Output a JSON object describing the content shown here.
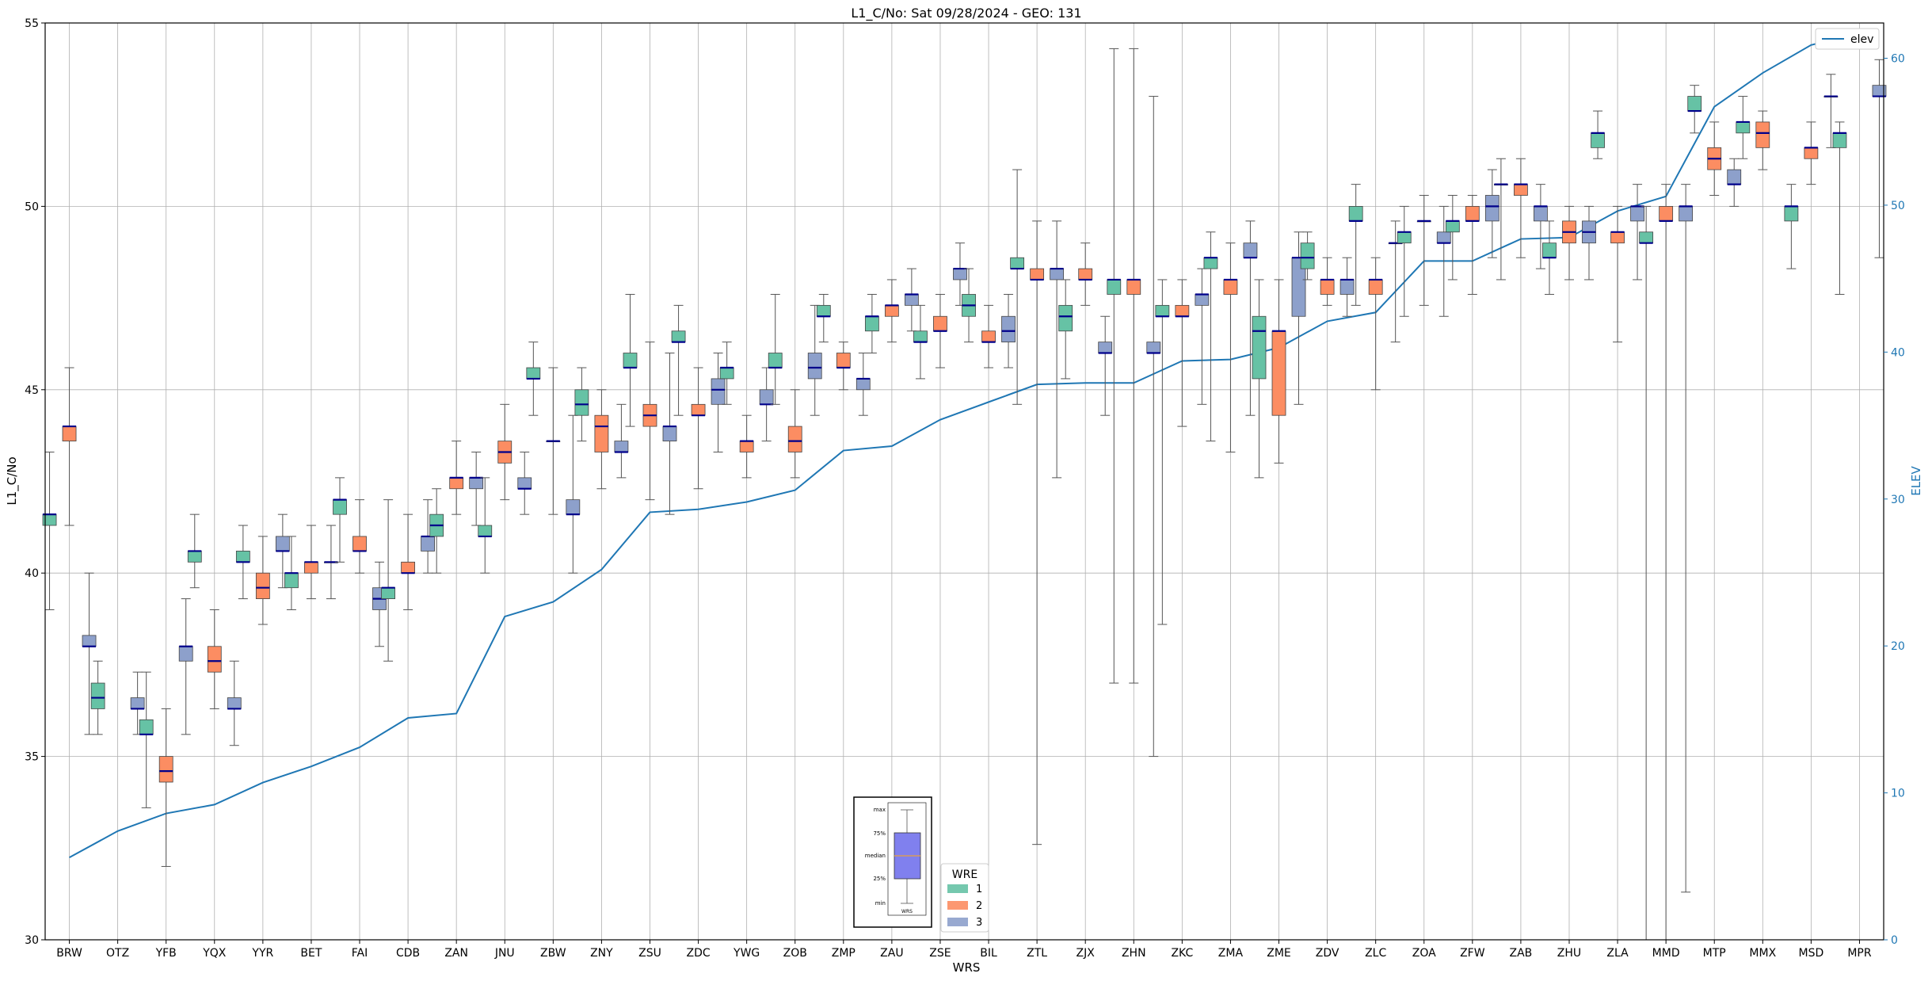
{
  "chart_data": {
    "type": "box",
    "title": "L1_C/No: Sat 09/28/2024 - GEO: 131",
    "xlabel": "WRS",
    "ylabel": "L1_C/No",
    "y2label": "ELEV",
    "ylim": [
      30,
      55
    ],
    "y2lim": [
      0,
      62.4
    ],
    "yticks": [
      30,
      35,
      40,
      45,
      50,
      55
    ],
    "y2ticks": [
      0,
      10,
      20,
      30,
      40,
      50,
      60
    ],
    "grid": true,
    "colors": {
      "1": "#66c2a5",
      "2": "#fc8d62",
      "3": "#8da0cb",
      "median": "#00008b",
      "elev": "#1f77b4",
      "axis2": "#1f77b4",
      "grid": "#b0b0b0"
    },
    "categories": [
      "BRW",
      "OTZ",
      "YFB",
      "YQX",
      "YYR",
      "BET",
      "FAI",
      "CDB",
      "ZAN",
      "JNU",
      "ZBW",
      "ZNY",
      "ZSU",
      "ZDC",
      "YWG",
      "ZOB",
      "ZMP",
      "ZAU",
      "ZSE",
      "BIL",
      "ZTL",
      "ZJX",
      "ZHN",
      "ZKC",
      "ZMA",
      "ZME",
      "ZDV",
      "ZLC",
      "ZOA",
      "ZFW",
      "ZAB",
      "ZHU",
      "ZLA",
      "MMD",
      "MTP",
      "MMX",
      "MSD",
      "MPR"
    ],
    "elev": [
      5.6,
      7.4,
      8.6,
      9.2,
      10.7,
      11.8,
      13.1,
      15.1,
      15.4,
      22.0,
      23.0,
      25.2,
      29.1,
      29.3,
      29.8,
      30.6,
      33.3,
      33.6,
      35.4,
      36.6,
      37.8,
      37.9,
      37.9,
      39.4,
      39.5,
      40.3,
      42.1,
      42.7,
      46.2,
      46.2,
      47.7,
      47.8,
      49.6,
      50.6,
      56.7,
      59.0,
      60.9,
      61.7
    ],
    "legend": {
      "title": "WRE",
      "entries": [
        "1",
        "2",
        "3"
      ],
      "line_label": "elev"
    },
    "inset": {
      "labels": [
        "max",
        "75%",
        "median",
        "25%",
        "min"
      ],
      "xlabel": "WRS"
    },
    "boxes": [
      {
        "cat": "BRW",
        "wre": "1",
        "min": 39.0,
        "q1": 41.3,
        "med": 41.6,
        "q3": 41.6,
        "max": 43.3
      },
      {
        "cat": "BRW",
        "wre": "2",
        "min": 41.3,
        "q1": 43.6,
        "med": 44.0,
        "q3": 44.0,
        "max": 45.6
      },
      {
        "cat": "BRW",
        "wre": "3",
        "min": 35.6,
        "q1": 38.0,
        "med": 38.0,
        "q3": 38.3,
        "max": 40.0
      },
      {
        "cat": "OTZ",
        "wre": "1",
        "min": 35.6,
        "q1": 36.3,
        "med": 36.6,
        "q3": 37.0,
        "max": 37.6
      },
      {
        "cat": "OTZ",
        "wre": "3",
        "min": 35.6,
        "q1": 36.3,
        "med": 36.3,
        "q3": 36.6,
        "max": 37.3
      },
      {
        "cat": "YFB",
        "wre": "1",
        "min": 33.6,
        "q1": 35.6,
        "med": 35.6,
        "q3": 36.0,
        "max": 37.3
      },
      {
        "cat": "YFB",
        "wre": "2",
        "min": 32.0,
        "q1": 34.3,
        "med": 34.6,
        "q3": 35.0,
        "max": 36.3
      },
      {
        "cat": "YFB",
        "wre": "3",
        "min": 35.6,
        "q1": 37.6,
        "med": 38.0,
        "q3": 38.0,
        "max": 39.3
      },
      {
        "cat": "YQX",
        "wre": "1",
        "min": 39.6,
        "q1": 40.3,
        "med": 40.6,
        "q3": 40.6,
        "max": 41.6
      },
      {
        "cat": "YQX",
        "wre": "2",
        "min": 36.3,
        "q1": 37.3,
        "med": 37.6,
        "q3": 38.0,
        "max": 39.0
      },
      {
        "cat": "YQX",
        "wre": "3",
        "min": 35.3,
        "q1": 36.3,
        "med": 36.3,
        "q3": 36.6,
        "max": 37.6
      },
      {
        "cat": "YYR",
        "wre": "1",
        "min": 39.3,
        "q1": 40.3,
        "med": 40.3,
        "q3": 40.6,
        "max": 41.3
      },
      {
        "cat": "YYR",
        "wre": "2",
        "min": 38.6,
        "q1": 39.3,
        "med": 39.6,
        "q3": 40.0,
        "max": 41.0
      },
      {
        "cat": "YYR",
        "wre": "3",
        "min": 39.6,
        "q1": 40.6,
        "med": 40.6,
        "q3": 41.0,
        "max": 41.6
      },
      {
        "cat": "BET",
        "wre": "1",
        "min": 39.0,
        "q1": 39.6,
        "med": 40.0,
        "q3": 40.0,
        "max": 41.0
      },
      {
        "cat": "BET",
        "wre": "2",
        "min": 39.3,
        "q1": 40.0,
        "med": 40.3,
        "q3": 40.3,
        "max": 41.3
      },
      {
        "cat": "BET",
        "wre": "3",
        "min": 39.3,
        "q1": 40.3,
        "med": 40.3,
        "q3": 40.3,
        "max": 41.3
      },
      {
        "cat": "FAI",
        "wre": "1",
        "min": 40.3,
        "q1": 41.6,
        "med": 42.0,
        "q3": 42.0,
        "max": 42.6
      },
      {
        "cat": "FAI",
        "wre": "2",
        "min": 40.0,
        "q1": 40.6,
        "med": 40.6,
        "q3": 41.0,
        "max": 42.0
      },
      {
        "cat": "FAI",
        "wre": "3",
        "min": 38.0,
        "q1": 39.0,
        "med": 39.3,
        "q3": 39.6,
        "max": 40.3
      },
      {
        "cat": "CDB",
        "wre": "1",
        "min": 37.6,
        "q1": 39.3,
        "med": 39.6,
        "q3": 39.6,
        "max": 42.0
      },
      {
        "cat": "CDB",
        "wre": "2",
        "min": 39.0,
        "q1": 40.0,
        "med": 40.0,
        "q3": 40.3,
        "max": 41.6
      },
      {
        "cat": "CDB",
        "wre": "3",
        "min": 40.0,
        "q1": 40.6,
        "med": 41.0,
        "q3": 41.0,
        "max": 42.0
      },
      {
        "cat": "ZAN",
        "wre": "1",
        "min": 40.0,
        "q1": 41.0,
        "med": 41.3,
        "q3": 41.6,
        "max": 42.3
      },
      {
        "cat": "ZAN",
        "wre": "2",
        "min": 41.6,
        "q1": 42.3,
        "med": 42.6,
        "q3": 42.6,
        "max": 43.6
      },
      {
        "cat": "ZAN",
        "wre": "3",
        "min": 41.3,
        "q1": 42.3,
        "med": 42.6,
        "q3": 42.6,
        "max": 43.3
      },
      {
        "cat": "JNU",
        "wre": "1",
        "min": 40.0,
        "q1": 41.0,
        "med": 41.0,
        "q3": 41.3,
        "max": 42.6
      },
      {
        "cat": "JNU",
        "wre": "2",
        "min": 42.0,
        "q1": 43.0,
        "med": 43.3,
        "q3": 43.6,
        "max": 44.6
      },
      {
        "cat": "JNU",
        "wre": "3",
        "min": 41.6,
        "q1": 42.3,
        "med": 42.3,
        "q3": 42.6,
        "max": 43.3
      },
      {
        "cat": "ZBW",
        "wre": "1",
        "min": 44.3,
        "q1": 45.3,
        "med": 45.3,
        "q3": 45.6,
        "max": 46.3
      },
      {
        "cat": "ZBW",
        "wre": "2",
        "min": 41.6,
        "q1": 43.6,
        "med": 43.6,
        "q3": 43.6,
        "max": 45.6
      },
      {
        "cat": "ZBW",
        "wre": "3",
        "min": 40.0,
        "q1": 41.6,
        "med": 41.6,
        "q3": 42.0,
        "max": 44.3
      },
      {
        "cat": "ZNY",
        "wre": "1",
        "min": 43.6,
        "q1": 44.3,
        "med": 44.6,
        "q3": 45.0,
        "max": 45.6
      },
      {
        "cat": "ZNY",
        "wre": "2",
        "min": 42.3,
        "q1": 43.3,
        "med": 44.0,
        "q3": 44.3,
        "max": 45.0
      },
      {
        "cat": "ZNY",
        "wre": "3",
        "min": 42.6,
        "q1": 43.3,
        "med": 43.3,
        "q3": 43.6,
        "max": 44.6
      },
      {
        "cat": "ZSU",
        "wre": "1",
        "min": 44.0,
        "q1": 45.6,
        "med": 45.6,
        "q3": 46.0,
        "max": 47.6
      },
      {
        "cat": "ZSU",
        "wre": "2",
        "min": 42.0,
        "q1": 44.0,
        "med": 44.3,
        "q3": 44.6,
        "max": 46.3
      },
      {
        "cat": "ZSU",
        "wre": "3",
        "min": 41.6,
        "q1": 43.6,
        "med": 44.0,
        "q3": 44.0,
        "max": 46.0
      },
      {
        "cat": "ZDC",
        "wre": "1",
        "min": 44.3,
        "q1": 46.3,
        "med": 46.3,
        "q3": 46.6,
        "max": 47.3
      },
      {
        "cat": "ZDC",
        "wre": "2",
        "min": 42.3,
        "q1": 44.3,
        "med": 44.3,
        "q3": 44.6,
        "max": 45.6
      },
      {
        "cat": "ZDC",
        "wre": "3",
        "min": 43.3,
        "q1": 44.6,
        "med": 45.0,
        "q3": 45.3,
        "max": 46.0
      },
      {
        "cat": "YWG",
        "wre": "1",
        "min": 44.6,
        "q1": 45.3,
        "med": 45.6,
        "q3": 45.6,
        "max": 46.3
      },
      {
        "cat": "YWG",
        "wre": "2",
        "min": 42.6,
        "q1": 43.3,
        "med": 43.6,
        "q3": 43.6,
        "max": 44.3
      },
      {
        "cat": "YWG",
        "wre": "3",
        "min": 43.6,
        "q1": 44.6,
        "med": 44.6,
        "q3": 45.0,
        "max": 45.6
      },
      {
        "cat": "ZOB",
        "wre": "1",
        "min": 44.6,
        "q1": 45.6,
        "med": 45.6,
        "q3": 46.0,
        "max": 47.6
      },
      {
        "cat": "ZOB",
        "wre": "2",
        "min": 42.6,
        "q1": 43.3,
        "med": 43.6,
        "q3": 44.0,
        "max": 45.0
      },
      {
        "cat": "ZOB",
        "wre": "3",
        "min": 44.3,
        "q1": 45.3,
        "med": 45.6,
        "q3": 46.0,
        "max": 47.3
      },
      {
        "cat": "ZMP",
        "wre": "1",
        "min": 46.3,
        "q1": 47.0,
        "med": 47.0,
        "q3": 47.3,
        "max": 47.6
      },
      {
        "cat": "ZMP",
        "wre": "2",
        "min": 45.0,
        "q1": 45.6,
        "med": 45.6,
        "q3": 46.0,
        "max": 46.3
      },
      {
        "cat": "ZMP",
        "wre": "3",
        "min": 44.3,
        "q1": 45.0,
        "med": 45.3,
        "q3": 45.3,
        "max": 46.0
      },
      {
        "cat": "ZAU",
        "wre": "1",
        "min": 46.0,
        "q1": 46.6,
        "med": 47.0,
        "q3": 47.0,
        "max": 47.6
      },
      {
        "cat": "ZAU",
        "wre": "2",
        "min": 46.3,
        "q1": 47.0,
        "med": 47.3,
        "q3": 47.3,
        "max": 48.0
      },
      {
        "cat": "ZAU",
        "wre": "3",
        "min": 46.6,
        "q1": 47.3,
        "med": 47.6,
        "q3": 47.6,
        "max": 48.3
      },
      {
        "cat": "ZSE",
        "wre": "1",
        "min": 45.3,
        "q1": 46.3,
        "med": 46.3,
        "q3": 46.6,
        "max": 47.3
      },
      {
        "cat": "ZSE",
        "wre": "2",
        "min": 45.6,
        "q1": 46.6,
        "med": 46.6,
        "q3": 47.0,
        "max": 47.6
      },
      {
        "cat": "ZSE",
        "wre": "3",
        "min": 47.3,
        "q1": 48.0,
        "med": 48.3,
        "q3": 48.3,
        "max": 49.0
      },
      {
        "cat": "BIL",
        "wre": "1",
        "min": 46.3,
        "q1": 47.0,
        "med": 47.3,
        "q3": 47.6,
        "max": 48.3
      },
      {
        "cat": "BIL",
        "wre": "2",
        "min": 45.6,
        "q1": 46.3,
        "med": 46.3,
        "q3": 46.6,
        "max": 47.3
      },
      {
        "cat": "BIL",
        "wre": "3",
        "min": 45.6,
        "q1": 46.3,
        "med": 46.6,
        "q3": 47.0,
        "max": 47.6
      },
      {
        "cat": "ZTL",
        "wre": "1",
        "min": 44.6,
        "q1": 48.3,
        "med": 48.3,
        "q3": 48.6,
        "max": 51.0
      },
      {
        "cat": "ZTL",
        "wre": "2",
        "min": 32.6,
        "q1": 48.0,
        "med": 48.0,
        "q3": 48.3,
        "max": 49.6
      },
      {
        "cat": "ZTL",
        "wre": "3",
        "min": 42.6,
        "q1": 48.0,
        "med": 48.3,
        "q3": 48.3,
        "max": 49.6
      },
      {
        "cat": "ZJX",
        "wre": "1",
        "min": 45.3,
        "q1": 46.6,
        "med": 47.0,
        "q3": 47.3,
        "max": 48.0
      },
      {
        "cat": "ZJX",
        "wre": "2",
        "min": 47.3,
        "q1": 48.0,
        "med": 48.0,
        "q3": 48.3,
        "max": 49.0
      },
      {
        "cat": "ZJX",
        "wre": "3",
        "min": 44.3,
        "q1": 46.0,
        "med": 46.0,
        "q3": 46.3,
        "max": 47.0
      },
      {
        "cat": "ZHN",
        "wre": "1",
        "min": 37.0,
        "q1": 47.6,
        "med": 48.0,
        "q3": 48.0,
        "max": 54.3
      },
      {
        "cat": "ZHN",
        "wre": "2",
        "min": 37.0,
        "q1": 47.6,
        "med": 48.0,
        "q3": 48.0,
        "max": 54.3
      },
      {
        "cat": "ZHN",
        "wre": "3",
        "min": 35.0,
        "q1": 46.0,
        "med": 46.0,
        "q3": 46.3,
        "max": 53.0
      },
      {
        "cat": "ZKC",
        "wre": "1",
        "min": 38.6,
        "q1": 47.0,
        "med": 47.0,
        "q3": 47.3,
        "max": 48.0
      },
      {
        "cat": "ZKC",
        "wre": "2",
        "min": 44.0,
        "q1": 47.0,
        "med": 47.0,
        "q3": 47.3,
        "max": 48.0
      },
      {
        "cat": "ZKC",
        "wre": "3",
        "min": 44.6,
        "q1": 47.3,
        "med": 47.6,
        "q3": 47.6,
        "max": 48.3
      },
      {
        "cat": "ZMA",
        "wre": "1",
        "min": 43.6,
        "q1": 48.3,
        "med": 48.6,
        "q3": 48.6,
        "max": 49.3
      },
      {
        "cat": "ZMA",
        "wre": "2",
        "min": 43.3,
        "q1": 47.6,
        "med": 48.0,
        "q3": 48.0,
        "max": 49.0
      },
      {
        "cat": "ZMA",
        "wre": "3",
        "min": 44.3,
        "q1": 48.6,
        "med": 48.6,
        "q3": 49.0,
        "max": 49.6
      },
      {
        "cat": "ZME",
        "wre": "1",
        "min": 42.6,
        "q1": 45.3,
        "med": 46.6,
        "q3": 47.0,
        "max": 48.0
      },
      {
        "cat": "ZME",
        "wre": "2",
        "min": 43.0,
        "q1": 44.3,
        "med": 46.6,
        "q3": 46.6,
        "max": 48.0
      },
      {
        "cat": "ZME",
        "wre": "3",
        "min": 44.6,
        "q1": 47.0,
        "med": 48.6,
        "q3": 48.6,
        "max": 49.3
      },
      {
        "cat": "ZDV",
        "wre": "1",
        "min": 48.0,
        "q1": 48.3,
        "med": 48.6,
        "q3": 49.0,
        "max": 49.3
      },
      {
        "cat": "ZDV",
        "wre": "2",
        "min": 47.3,
        "q1": 47.6,
        "med": 48.0,
        "q3": 48.0,
        "max": 48.6
      },
      {
        "cat": "ZDV",
        "wre": "3",
        "min": 47.0,
        "q1": 47.6,
        "med": 48.0,
        "q3": 48.0,
        "max": 48.6
      },
      {
        "cat": "ZLC",
        "wre": "1",
        "min": 47.3,
        "q1": 49.6,
        "med": 49.6,
        "q3": 50.0,
        "max": 50.6
      },
      {
        "cat": "ZLC",
        "wre": "2",
        "min": 45.0,
        "q1": 47.6,
        "med": 48.0,
        "q3": 48.0,
        "max": 48.6
      },
      {
        "cat": "ZLC",
        "wre": "3",
        "min": 46.3,
        "q1": 49.0,
        "med": 49.0,
        "q3": 49.0,
        "max": 49.6
      },
      {
        "cat": "ZOA",
        "wre": "1",
        "min": 47.0,
        "q1": 49.0,
        "med": 49.3,
        "q3": 49.3,
        "max": 50.0
      },
      {
        "cat": "ZOA",
        "wre": "2",
        "min": 47.3,
        "q1": 49.6,
        "med": 49.6,
        "q3": 49.6,
        "max": 50.3
      },
      {
        "cat": "ZOA",
        "wre": "3",
        "min": 47.0,
        "q1": 49.0,
        "med": 49.0,
        "q3": 49.3,
        "max": 50.0
      },
      {
        "cat": "ZFW",
        "wre": "1",
        "min": 48.0,
        "q1": 49.3,
        "med": 49.6,
        "q3": 49.6,
        "max": 50.3
      },
      {
        "cat": "ZFW",
        "wre": "2",
        "min": 47.6,
        "q1": 49.6,
        "med": 49.6,
        "q3": 50.0,
        "max": 50.3
      },
      {
        "cat": "ZFW",
        "wre": "3",
        "min": 48.6,
        "q1": 49.6,
        "med": 50.0,
        "q3": 50.3,
        "max": 51.0
      },
      {
        "cat": "ZAB",
        "wre": "1",
        "min": 48.0,
        "q1": 50.6,
        "med": 50.6,
        "q3": 50.6,
        "max": 51.3
      },
      {
        "cat": "ZAB",
        "wre": "2",
        "min": 48.6,
        "q1": 50.3,
        "med": 50.6,
        "q3": 50.6,
        "max": 51.3
      },
      {
        "cat": "ZAB",
        "wre": "3",
        "min": 48.3,
        "q1": 49.6,
        "med": 50.0,
        "q3": 50.0,
        "max": 50.6
      },
      {
        "cat": "ZHU",
        "wre": "1",
        "min": 47.6,
        "q1": 48.6,
        "med": 48.6,
        "q3": 49.0,
        "max": 49.6
      },
      {
        "cat": "ZHU",
        "wre": "2",
        "min": 48.0,
        "q1": 49.0,
        "med": 49.3,
        "q3": 49.6,
        "max": 50.0
      },
      {
        "cat": "ZHU",
        "wre": "3",
        "min": 48.0,
        "q1": 49.0,
        "med": 49.3,
        "q3": 49.6,
        "max": 50.0
      },
      {
        "cat": "ZLA",
        "wre": "1",
        "min": 51.3,
        "q1": 51.6,
        "med": 52.0,
        "q3": 52.0,
        "max": 52.6
      },
      {
        "cat": "ZLA",
        "wre": "2",
        "min": 46.3,
        "q1": 49.0,
        "med": 49.3,
        "q3": 49.3,
        "max": 50.0
      },
      {
        "cat": "ZLA",
        "wre": "3",
        "min": 48.0,
        "q1": 49.6,
        "med": 50.0,
        "q3": 50.0,
        "max": 50.6
      },
      {
        "cat": "MMD",
        "wre": "1",
        "min": 30.0,
        "q1": 49.0,
        "med": 49.0,
        "q3": 49.3,
        "max": 50.0
      },
      {
        "cat": "MMD",
        "wre": "2",
        "min": 30.0,
        "q1": 49.6,
        "med": 49.6,
        "q3": 50.0,
        "max": 50.6
      },
      {
        "cat": "MMD",
        "wre": "3",
        "min": 31.3,
        "q1": 49.6,
        "med": 50.0,
        "q3": 50.0,
        "max": 50.6
      },
      {
        "cat": "MTP",
        "wre": "1",
        "min": 52.0,
        "q1": 52.6,
        "med": 52.6,
        "q3": 53.0,
        "max": 53.3
      },
      {
        "cat": "MTP",
        "wre": "2",
        "min": 50.3,
        "q1": 51.0,
        "med": 51.3,
        "q3": 51.6,
        "max": 52.3
      },
      {
        "cat": "MTP",
        "wre": "3",
        "min": 50.0,
        "q1": 50.6,
        "med": 50.6,
        "q3": 51.0,
        "max": 51.3
      },
      {
        "cat": "MMX",
        "wre": "1",
        "min": 51.3,
        "q1": 52.0,
        "med": 52.3,
        "q3": 52.3,
        "max": 53.0
      },
      {
        "cat": "MMX",
        "wre": "2",
        "min": 51.0,
        "q1": 51.6,
        "med": 52.0,
        "q3": 52.3,
        "max": 52.6
      },
      {
        "cat": "MSD",
        "wre": "1",
        "min": 48.3,
        "q1": 49.6,
        "med": 50.0,
        "q3": 50.0,
        "max": 50.6
      },
      {
        "cat": "MSD",
        "wre": "2",
        "min": 50.6,
        "q1": 51.3,
        "med": 51.6,
        "q3": 51.6,
        "max": 52.3
      },
      {
        "cat": "MSD",
        "wre": "3",
        "min": 51.6,
        "q1": 53.0,
        "med": 53.0,
        "q3": 53.0,
        "max": 53.6
      },
      {
        "cat": "MPR",
        "wre": "1",
        "min": 47.6,
        "q1": 51.6,
        "med": 52.0,
        "q3": 52.0,
        "max": 52.3
      },
      {
        "cat": "MPR",
        "wre": "3",
        "min": 48.6,
        "q1": 53.0,
        "med": 53.0,
        "q3": 53.3,
        "max": 54.0
      }
    ]
  }
}
